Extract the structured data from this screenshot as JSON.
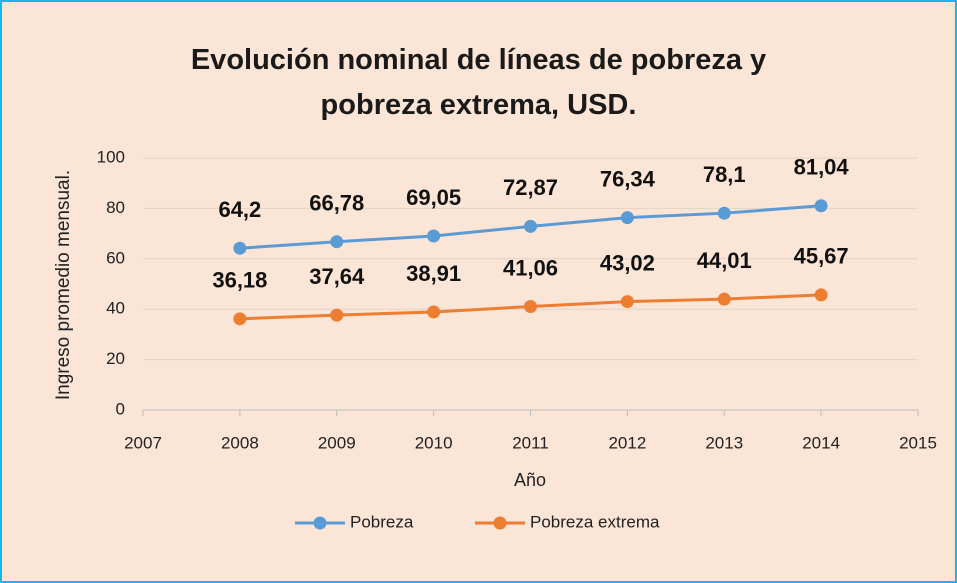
{
  "chart_data": {
    "type": "line",
    "title": "Evolución nominal de líneas de pobreza y pobreza extrema, USD.",
    "xlabel": "Año",
    "ylabel": "Ingreso promedio mensual.",
    "x": [
      2008,
      2009,
      2010,
      2011,
      2012,
      2013,
      2014
    ],
    "series": [
      {
        "name": "Pobreza",
        "color": "#5b9bd5",
        "values": [
          64.2,
          66.78,
          69.05,
          72.87,
          76.34,
          78.1,
          81.04
        ],
        "value_labels": [
          "64,2",
          "66,78",
          "69,05",
          "72,87",
          "76,34",
          "78,1",
          "81,04"
        ]
      },
      {
        "name": "Pobreza extrema",
        "color": "#ed7d31",
        "values": [
          36.18,
          37.64,
          38.91,
          41.06,
          43.02,
          44.01,
          45.67
        ],
        "value_labels": [
          "36,18",
          "37,64",
          "38,91",
          "41,06",
          "43,02",
          "44,01",
          "45,67"
        ]
      }
    ],
    "xlim": [
      2007,
      2015
    ],
    "xticks": [
      2007,
      2008,
      2009,
      2010,
      2011,
      2012,
      2013,
      2014,
      2015
    ],
    "ylim": [
      0,
      100
    ],
    "yticks": [
      0,
      20,
      40,
      60,
      80,
      100
    ],
    "grid": true,
    "legend": "bottom"
  }
}
